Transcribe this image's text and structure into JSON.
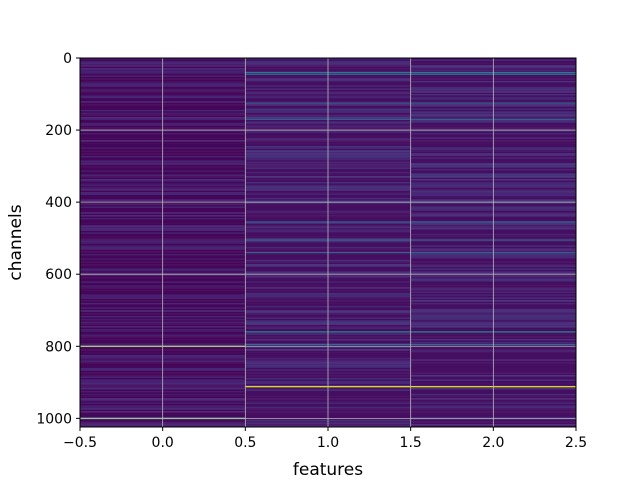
{
  "chart_data": {
    "type": "heatmap",
    "title": "",
    "xlabel": "features",
    "ylabel": "channels",
    "xlim": [
      -0.5,
      2.5
    ],
    "ylim": [
      1024,
      0
    ],
    "y_inverted": true,
    "grid": true,
    "colormap": "viridis",
    "n_channels": 1024,
    "columns": [
      0,
      1,
      2
    ],
    "x_ticks": [
      -0.5,
      0.0,
      0.5,
      1.0,
      1.5,
      2.0,
      2.5
    ],
    "x_tick_labels": [
      "−0.5",
      "0.0",
      "0.5",
      "1.0",
      "1.5",
      "2.0",
      "2.5"
    ],
    "y_ticks": [
      0,
      200,
      400,
      600,
      800,
      1000
    ],
    "y_tick_labels": [
      "0",
      "200",
      "400",
      "600",
      "800",
      "1000"
    ],
    "column_features": [
      {
        "column": 0,
        "base_level": 0.02,
        "bright_rows": [
          {
            "channel": 800,
            "value": 0.85
          },
          {
            "channel": 1000,
            "value": 0.75
          }
        ]
      },
      {
        "column": [
          1,
          2
        ],
        "base_level": 0.05,
        "bright_rows": [
          {
            "channel": 40,
            "value": 0.4
          },
          {
            "channel": 45,
            "value": 0.35
          },
          {
            "channel": 125,
            "value": 0.3
          },
          {
            "channel": 170,
            "value": 0.3
          },
          {
            "channel": 400,
            "value": 0.28
          },
          {
            "channel": 455,
            "value": 0.3
          },
          {
            "channel": 505,
            "value": 0.32
          },
          {
            "channel": 540,
            "value": 0.3
          },
          {
            "channel": 760,
            "value": 0.45
          },
          {
            "channel": 795,
            "value": 0.35
          },
          {
            "channel": 912,
            "value": 0.95
          }
        ]
      }
    ]
  }
}
